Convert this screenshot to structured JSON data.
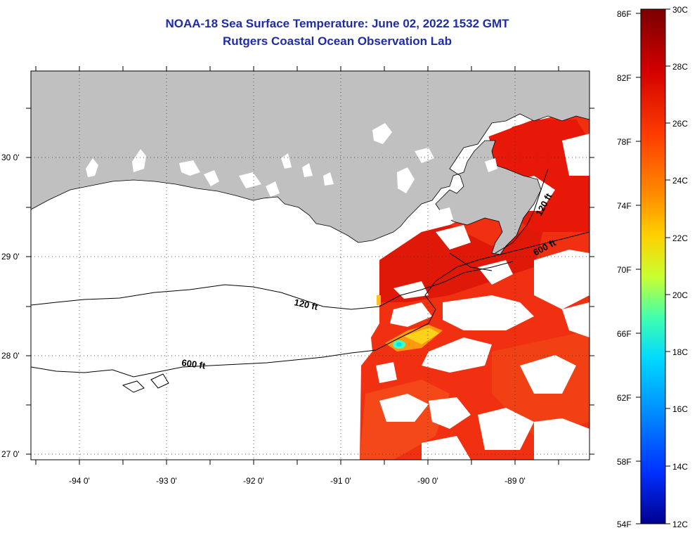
{
  "header": {
    "title": "NOAA-18 Sea Surface Temperature:  June 02, 2022 1532 GMT",
    "subtitle": "Rutgers Coastal Ocean Observation Lab"
  },
  "map": {
    "lon_labels": [
      "-94 0'",
      "-93 0'",
      "-92 0'",
      "-91 0'",
      "-90 0'",
      "-89 0'"
    ],
    "lat_labels": [
      "30 0'",
      "29 0'",
      "28 0'",
      "27 0'"
    ],
    "contours": [
      {
        "label": "120 ft",
        "name": "shelf-120"
      },
      {
        "label": "600 ft",
        "name": "shelf-600"
      },
      {
        "label": "120 ft",
        "name": "east-120"
      },
      {
        "label": "600 ft",
        "name": "east-600"
      }
    ],
    "land_color": "#c0c0c0",
    "cloud_color": "#ffffff"
  },
  "colorbar": {
    "fahrenheit_labels": [
      "86F",
      "82F",
      "78F",
      "74F",
      "70F",
      "66F",
      "62F",
      "58F",
      "54F"
    ],
    "celsius_labels": [
      "30C",
      "28C",
      "26C",
      "24C",
      "22C",
      "20C",
      "18C",
      "16C",
      "14C",
      "12C"
    ],
    "stops": [
      "#7a0000",
      "#d40000",
      "#ff4000",
      "#ff8c00",
      "#ffd000",
      "#c8ff30",
      "#40ffb0",
      "#00d8ff",
      "#0090ff",
      "#0030ff",
      "#000090"
    ]
  }
}
